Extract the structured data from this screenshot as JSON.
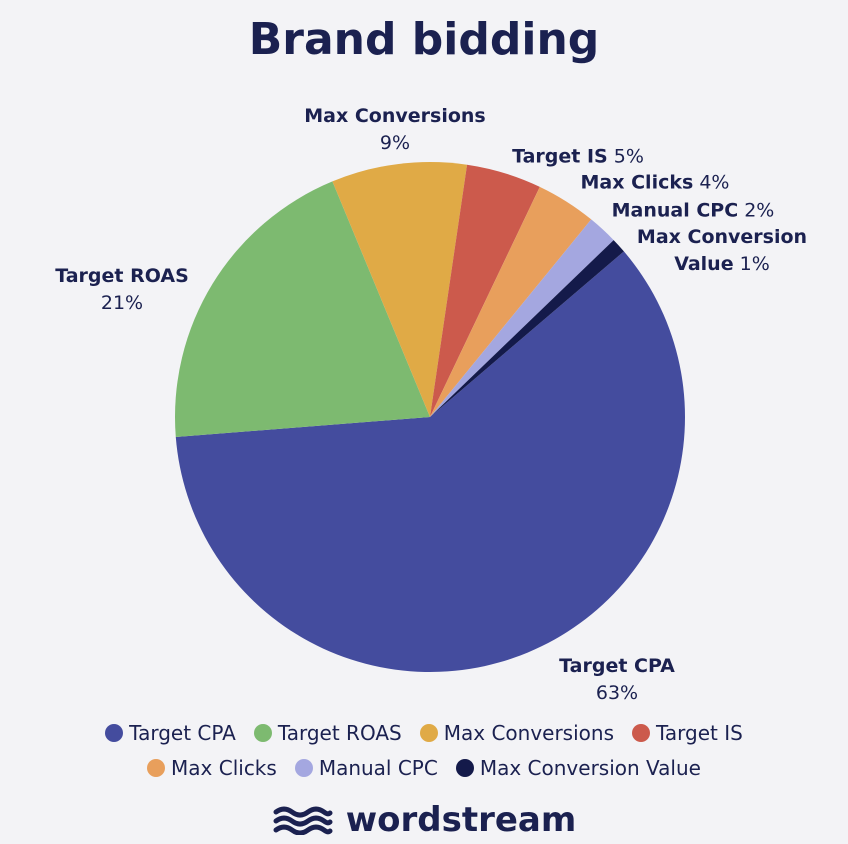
{
  "chart_data": {
    "type": "pie",
    "title": "Brand bidding",
    "categories": [
      "Target CPA",
      "Target ROAS",
      "Max Conversions",
      "Target IS",
      "Max Clicks",
      "Manual CPC",
      "Max Conversion Value"
    ],
    "values": [
      63,
      21,
      9,
      5,
      4,
      2,
      1
    ],
    "value_labels": [
      "63%",
      "21%",
      "9%",
      "5%",
      "4%",
      "2%",
      "1%"
    ],
    "colors": [
      "#444c9e",
      "#7dba70",
      "#e0aa46",
      "#cc5a4c",
      "#e89f5c",
      "#a4a7e0",
      "#141a4a"
    ],
    "legend": true
  },
  "brand": "wordstream"
}
